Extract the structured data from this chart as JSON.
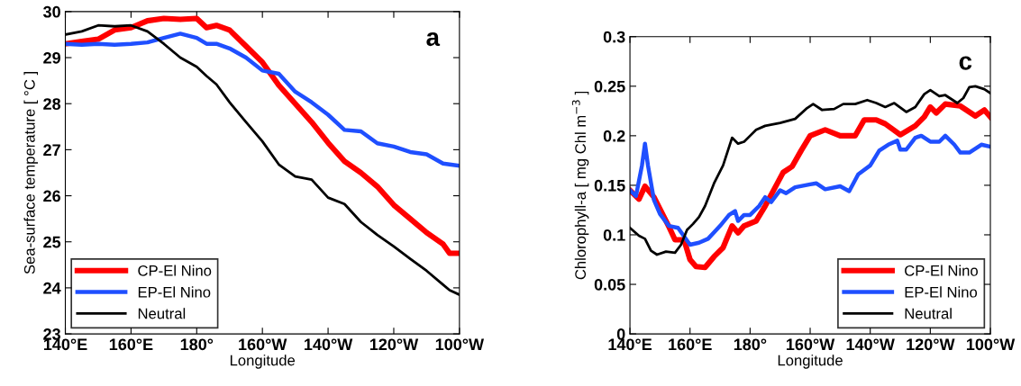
{
  "chart_data": [
    {
      "type": "line",
      "xlabel": "Longitude",
      "ylabel": "Sea-surface temperature [ °C ]",
      "annotations": [
        "a"
      ],
      "x": [
        140,
        145,
        150,
        155,
        160,
        165,
        170,
        175,
        180,
        183,
        186,
        190,
        195,
        200,
        205,
        210,
        215,
        220,
        225,
        230,
        235,
        240,
        245,
        250,
        255,
        257,
        260
      ],
      "series": [
        {
          "name": "CP-El Nino",
          "color": "#ff0000",
          "values": [
            29.3,
            29.35,
            29.4,
            29.6,
            29.65,
            29.8,
            29.85,
            29.83,
            29.85,
            29.65,
            29.7,
            29.6,
            29.25,
            28.9,
            28.4,
            28.0,
            27.6,
            27.15,
            26.75,
            26.5,
            26.2,
            25.8,
            25.5,
            25.2,
            24.95,
            24.75,
            24.75
          ]
        },
        {
          "name": "EP-El Nino",
          "color": "#1f4fff",
          "values": [
            29.3,
            29.28,
            29.3,
            29.28,
            29.3,
            29.33,
            29.43,
            29.52,
            29.43,
            29.3,
            29.3,
            29.2,
            29.0,
            28.72,
            28.65,
            28.26,
            28.03,
            27.76,
            27.43,
            27.4,
            27.14,
            27.07,
            26.95,
            26.9,
            26.7,
            26.68,
            26.65
          ]
        },
        {
          "name": "Neutral",
          "color": "#000000",
          "values": [
            29.5,
            29.57,
            29.7,
            29.68,
            29.7,
            29.57,
            29.3,
            29.0,
            28.8,
            28.6,
            28.42,
            28.03,
            27.6,
            27.18,
            26.68,
            26.42,
            26.35,
            25.96,
            25.82,
            25.43,
            25.15,
            24.9,
            24.63,
            24.37,
            24.07,
            23.95,
            23.85
          ]
        }
      ],
      "xlim": [
        140,
        260
      ],
      "xticks": [
        {
          "value": 140,
          "label": "140°E"
        },
        {
          "value": 160,
          "label": "160°E"
        },
        {
          "value": 180,
          "label": "180°"
        },
        {
          "value": 200,
          "label": "160°W"
        },
        {
          "value": 220,
          "label": "140°W"
        },
        {
          "value": 240,
          "label": "120°W"
        },
        {
          "value": 260,
          "label": "100°W"
        }
      ],
      "ylim": [
        23,
        30
      ],
      "yticks": [
        23,
        24,
        25,
        26,
        27,
        28,
        29,
        30
      ],
      "legend": "bottom left",
      "grid": false
    },
    {
      "type": "line",
      "xlabel": "Longitude",
      "ylabel": "Chlorophyll-a [ mg Chl m$^{−3}$ ]",
      "annotations": [
        "c"
      ],
      "series": [
        {
          "name": "CP-El Nino",
          "color": "#ff0000",
          "x": [
            140,
            143,
            145,
            148,
            150,
            153,
            155,
            158,
            160,
            162,
            165,
            168,
            171,
            174,
            176,
            178,
            182,
            185,
            188,
            191,
            194,
            197,
            200,
            205,
            210,
            215,
            218,
            222,
            225,
            230,
            235,
            238,
            240,
            242,
            245,
            250,
            255,
            258,
            260
          ],
          "values": [
            0.145,
            0.136,
            0.149,
            0.138,
            0.126,
            0.108,
            0.095,
            0.095,
            0.075,
            0.068,
            0.067,
            0.078,
            0.087,
            0.109,
            0.102,
            0.109,
            0.114,
            0.129,
            0.146,
            0.163,
            0.169,
            0.185,
            0.2,
            0.206,
            0.2,
            0.2,
            0.216,
            0.216,
            0.212,
            0.201,
            0.21,
            0.219,
            0.229,
            0.223,
            0.232,
            0.23,
            0.22,
            0.226,
            0.219
          ]
        },
        {
          "name": "EP-El Nino",
          "color": "#1f4fff",
          "x": [
            140,
            142,
            144,
            145,
            146,
            148,
            150,
            153,
            156,
            160,
            163,
            166,
            170,
            173,
            175,
            176,
            178,
            180,
            183,
            185,
            187,
            190,
            192,
            195,
            200,
            202,
            205,
            210,
            213,
            216,
            220,
            223,
            226,
            229,
            230,
            232,
            235,
            237,
            240,
            243,
            245,
            248,
            250,
            253,
            257,
            260
          ],
          "values": [
            0.145,
            0.139,
            0.17,
            0.192,
            0.17,
            0.135,
            0.121,
            0.109,
            0.107,
            0.09,
            0.092,
            0.096,
            0.109,
            0.12,
            0.124,
            0.114,
            0.12,
            0.12,
            0.129,
            0.138,
            0.133,
            0.145,
            0.142,
            0.148,
            0.151,
            0.152,
            0.146,
            0.149,
            0.144,
            0.161,
            0.17,
            0.185,
            0.191,
            0.195,
            0.186,
            0.186,
            0.198,
            0.2,
            0.194,
            0.194,
            0.2,
            0.191,
            0.183,
            0.183,
            0.191,
            0.189
          ]
        },
        {
          "name": "Neutral",
          "color": "#000000",
          "x": [
            140,
            143,
            145,
            147,
            149,
            152,
            155,
            157,
            159,
            161,
            163,
            165,
            168,
            171,
            174,
            176,
            178,
            180,
            182,
            185,
            190,
            195,
            199,
            201,
            204,
            208,
            211,
            215,
            219,
            222,
            225,
            228,
            232,
            235,
            238,
            240,
            243,
            245,
            249,
            251,
            253,
            255,
            258,
            260
          ],
          "values": [
            0.107,
            0.099,
            0.096,
            0.084,
            0.08,
            0.083,
            0.082,
            0.09,
            0.105,
            0.111,
            0.118,
            0.129,
            0.152,
            0.17,
            0.198,
            0.192,
            0.194,
            0.2,
            0.206,
            0.21,
            0.213,
            0.217,
            0.228,
            0.232,
            0.226,
            0.227,
            0.232,
            0.232,
            0.236,
            0.233,
            0.229,
            0.233,
            0.224,
            0.229,
            0.242,
            0.246,
            0.24,
            0.241,
            0.233,
            0.238,
            0.249,
            0.25,
            0.247,
            0.243
          ]
        }
      ],
      "xlim": [
        140,
        260
      ],
      "xticks": [
        {
          "value": 140,
          "label": "140°E"
        },
        {
          "value": 160,
          "label": "160°E"
        },
        {
          "value": 180,
          "label": "180°"
        },
        {
          "value": 200,
          "label": "160°W"
        },
        {
          "value": 220,
          "label": "140°W"
        },
        {
          "value": 240,
          "label": "120°W"
        },
        {
          "value": 260,
          "label": "100°W"
        }
      ],
      "ylim": [
        0,
        0.3
      ],
      "yticks": [
        0,
        0.05,
        0.1,
        0.15,
        0.2,
        0.25,
        0.3
      ],
      "legend": "bottom right",
      "grid": false
    }
  ]
}
